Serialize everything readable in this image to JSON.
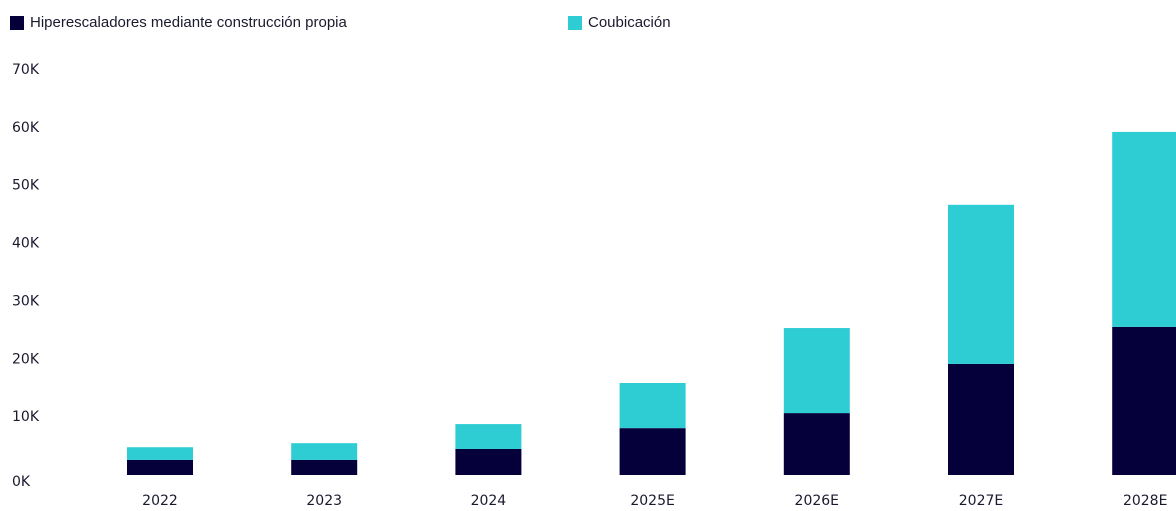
{
  "chart_data": {
    "type": "stacked_bar",
    "categories": [
      "2022",
      "2023",
      "2024",
      "2025E",
      "2026E",
      "2027E",
      "2028E"
    ],
    "series": [
      {
        "name": "Hiperescaladores mediante construcción propia",
        "color": "#05003a",
        "values": [
          2.6,
          2.6,
          4.5,
          8.1,
          10.7,
          19.2,
          25.6
        ]
      },
      {
        "name": "Coubicación",
        "color": "#2ecdd3",
        "values": [
          2.2,
          2.9,
          4.3,
          7.8,
          14.7,
          27.5,
          33.7
        ]
      }
    ],
    "ylim": [
      0,
      70
    ],
    "yticks": [
      {
        "value": 0,
        "label": "0K"
      },
      {
        "value": 10,
        "label": "10K"
      },
      {
        "value": 20,
        "label": "20K"
      },
      {
        "value": 30,
        "label": "30K"
      },
      {
        "value": 40,
        "label": "40K"
      },
      {
        "value": 50,
        "label": "50K"
      },
      {
        "value": 60,
        "label": "60K"
      },
      {
        "value": 70,
        "label": "70K"
      }
    ],
    "legend": "top-left",
    "grid": false
  }
}
